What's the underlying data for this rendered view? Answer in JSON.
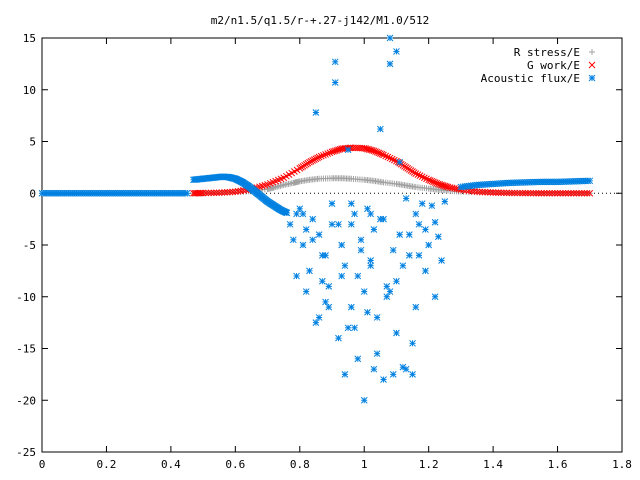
{
  "chart_data": {
    "type": "scatter",
    "title": "m2/n1.5/q1.5/r-+.27-j142/M1.0/512",
    "xlabel": "",
    "ylabel": "",
    "xlim": [
      0,
      1.8
    ],
    "ylim": [
      -25,
      15
    ],
    "grid": false,
    "legend_position": "top-right",
    "x_ticks": [
      "0",
      "0.2",
      "0.4",
      "0.6",
      "0.8",
      "1",
      "1.2",
      "1.4",
      "1.6",
      "1.8"
    ],
    "y_ticks": [
      "15",
      "10",
      "5",
      "0",
      "-5",
      "-10",
      "-15",
      "-20",
      "-25"
    ],
    "x_tick_values": [
      0,
      0.2,
      0.4,
      0.6,
      0.8,
      1.0,
      1.2,
      1.4,
      1.6,
      1.8
    ],
    "y_tick_values": [
      15,
      10,
      5,
      0,
      -5,
      -10,
      -15,
      -20,
      -25
    ],
    "series": [
      {
        "name": "R stress/E",
        "color": "#a0a0a0",
        "marker": "plus",
        "x": [
          0.47,
          0.5,
          0.55,
          0.6,
          0.65,
          0.7,
          0.72,
          0.75,
          0.78,
          0.8,
          0.83,
          0.86,
          0.9,
          0.93,
          0.96,
          1.0,
          1.03,
          1.06,
          1.1,
          1.13,
          1.16,
          1.2,
          1.23,
          1.26,
          1.3,
          1.35,
          1.4,
          1.45,
          1.5,
          1.55,
          1.6,
          1.65,
          1.7
        ],
        "y": [
          0.0,
          0.0,
          0.05,
          0.1,
          0.2,
          0.4,
          0.55,
          0.8,
          1.0,
          1.15,
          1.3,
          1.4,
          1.45,
          1.45,
          1.4,
          1.3,
          1.2,
          1.05,
          0.9,
          0.75,
          0.6,
          0.45,
          0.35,
          0.25,
          0.15,
          0.1,
          0.05,
          0.03,
          0.02,
          0.01,
          0.0,
          0.0,
          0.0
        ]
      },
      {
        "name": "G work/E",
        "color": "#ff0000",
        "marker": "cross",
        "x": [
          0.47,
          0.5,
          0.55,
          0.6,
          0.65,
          0.7,
          0.75,
          0.8,
          0.83,
          0.86,
          0.9,
          0.93,
          0.96,
          1.0,
          1.03,
          1.06,
          1.1,
          1.13,
          1.16,
          1.2,
          1.23,
          1.26,
          1.3,
          1.35,
          1.4,
          1.45,
          1.5,
          1.55,
          1.6,
          1.65,
          1.7
        ],
        "y": [
          0.0,
          0.02,
          0.05,
          0.15,
          0.4,
          0.85,
          1.5,
          2.4,
          3.0,
          3.5,
          4.0,
          4.3,
          4.4,
          4.35,
          4.1,
          3.7,
          3.1,
          2.5,
          1.9,
          1.3,
          0.9,
          0.6,
          0.35,
          0.15,
          0.07,
          0.03,
          0.01,
          0.0,
          0.0,
          0.0,
          0.0
        ]
      },
      {
        "name": "Acoustic flux/E",
        "color": "#0080e0",
        "marker": "star",
        "x": [
          0.0,
          0.05,
          0.1,
          0.15,
          0.2,
          0.25,
          0.3,
          0.35,
          0.4,
          0.45,
          0.47,
          0.5,
          0.53,
          0.56,
          0.58,
          0.6,
          0.62,
          0.64,
          0.66,
          0.68,
          0.7,
          0.72,
          0.74,
          0.76,
          1.3,
          1.35,
          1.4,
          1.45,
          1.5,
          1.55,
          1.6,
          1.65,
          1.7,
          0.77,
          0.78,
          0.79,
          0.8,
          0.81,
          0.82,
          0.83,
          0.84,
          0.85,
          0.86,
          0.87,
          0.88,
          0.89,
          0.9,
          0.91,
          0.92,
          0.93,
          0.94,
          0.95,
          0.96,
          0.97,
          0.98,
          0.99,
          1.0,
          1.01,
          1.02,
          1.03,
          1.04,
          1.05,
          1.06,
          1.07,
          1.08,
          1.09,
          1.1,
          1.11,
          1.12,
          1.13,
          1.14,
          1.15,
          1.16,
          1.17,
          1.18,
          1.19,
          1.2,
          1.21,
          1.22,
          1.23,
          1.24,
          1.25,
          0.79,
          0.82,
          0.85,
          0.88,
          0.92,
          0.95,
          0.98,
          1.01,
          1.04,
          1.07,
          1.1,
          1.13,
          1.16,
          1.19,
          1.22,
          0.81,
          0.84,
          0.87,
          0.9,
          0.93,
          0.96,
          0.99,
          1.02,
          1.05,
          1.08,
          1.11,
          1.14,
          1.17,
          0.86,
          0.89,
          0.94,
          0.97,
          1.0,
          1.03,
          1.06,
          1.09,
          1.12,
          1.15,
          0.91,
          0.96,
          1.02,
          1.08,
          1.1
        ],
        "y": [
          0.0,
          0.0,
          0.0,
          0.0,
          0.0,
          0.0,
          0.0,
          0.0,
          0.0,
          0.0,
          1.3,
          1.4,
          1.5,
          1.6,
          1.55,
          1.4,
          1.1,
          0.7,
          0.2,
          -0.3,
          -0.8,
          -1.2,
          -1.6,
          -1.9,
          0.6,
          0.8,
          0.9,
          1.0,
          1.05,
          1.1,
          1.1,
          1.15,
          1.2,
          -3.0,
          -4.5,
          -2.0,
          -1.5,
          -5.0,
          -3.5,
          -7.5,
          -2.5,
          7.8,
          -4.0,
          -8.5,
          -6.0,
          -9.0,
          -1.0,
          10.7,
          -3.0,
          -5.0,
          -7.0,
          4.2,
          -11.0,
          -2.0,
          -8.0,
          -4.5,
          -9.5,
          -1.5,
          -6.5,
          -3.5,
          -12.0,
          6.2,
          -2.5,
          -10.0,
          15.0,
          -5.5,
          -8.5,
          3.0,
          -7.0,
          -0.5,
          -4.0,
          -14.5,
          -2.0,
          -6.0,
          -1.0,
          -3.5,
          -5.0,
          -1.2,
          -2.8,
          -4.2,
          -6.5,
          -0.8,
          -8.0,
          -9.5,
          -12.5,
          -10.5,
          -14.0,
          -13.0,
          -16.0,
          -11.5,
          -15.5,
          -9.0,
          -13.5,
          -17.0,
          -11.0,
          -7.5,
          -10.0,
          -2.0,
          -4.5,
          -6.0,
          -3.0,
          -8.0,
          -1.0,
          -5.5,
          -7.0,
          -2.5,
          -9.5,
          -4.0,
          -6.0,
          -3.0,
          -12.0,
          -11.0,
          -17.5,
          -13.0,
          -20.0,
          -17.0,
          -18.0,
          -17.5,
          -16.8,
          -17.5,
          12.7,
          -3.0,
          -2.0,
          12.5,
          13.7
        ]
      }
    ]
  }
}
